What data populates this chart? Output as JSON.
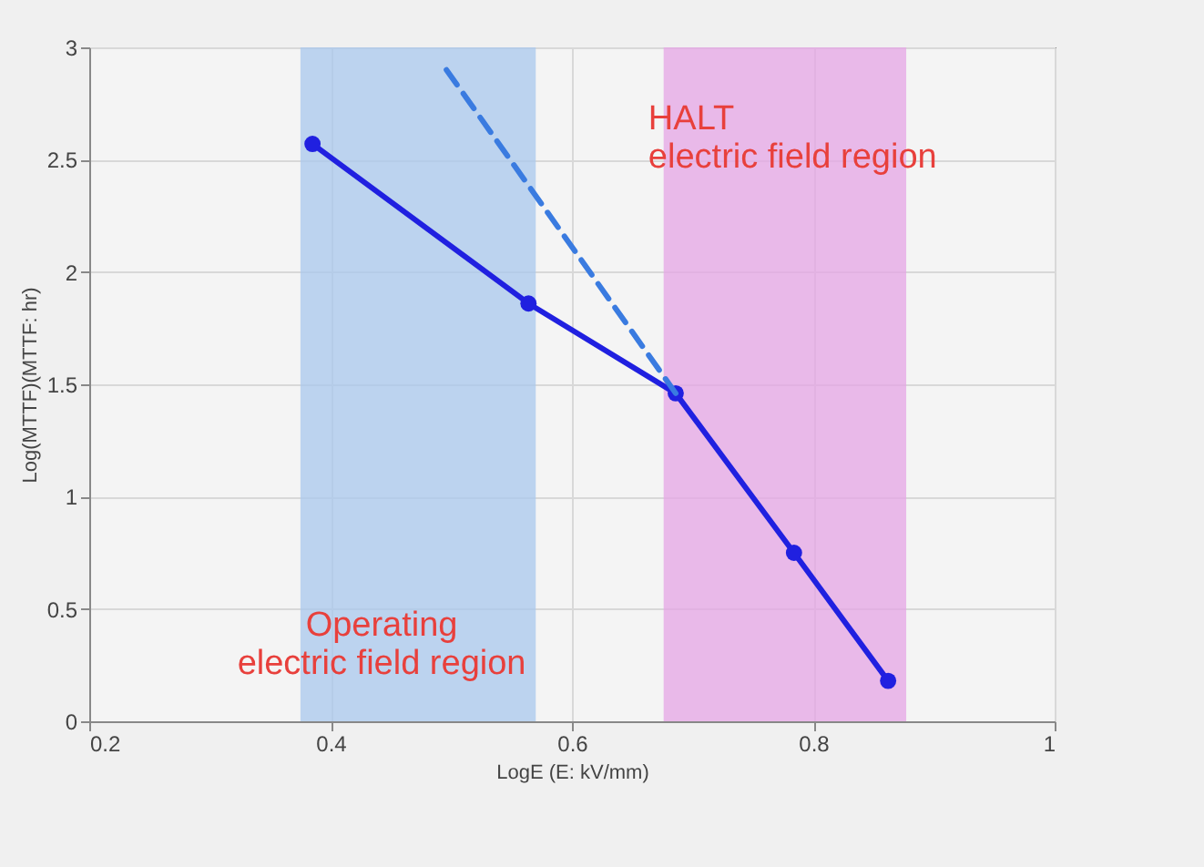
{
  "chart_data": {
    "type": "line",
    "xlabel": "LogE (E: kV/mm)",
    "ylabel": "Log(MTTF)(MTTF: hr)",
    "xlim": [
      0.2,
      1
    ],
    "xticks": [
      0.2,
      0.4,
      0.6,
      0.8,
      1
    ],
    "ylim": [
      0,
      3
    ],
    "yticks": [
      0,
      0.5,
      1,
      1.5,
      2,
      2.5,
      3
    ],
    "grid": true,
    "marker": "circle",
    "series": [
      {
        "color": "#2020e0",
        "x": [
          0.385,
          0.564,
          0.686,
          0.784,
          0.862
        ],
        "values": [
          2.57,
          1.86,
          1.46,
          0.75,
          0.18
        ],
        "line_style": "solid"
      },
      {
        "color": "#3a7be0",
        "x": [
          0.496,
          0.686
        ],
        "values": [
          2.9,
          1.46
        ],
        "line_style": "dashed",
        "marker": "none"
      }
    ],
    "bands": [
      {
        "axis": "x",
        "from": 0.375,
        "to": 0.57,
        "color": "#a9c8ee",
        "label": "Operating\nelectric field region"
      },
      {
        "axis": "x",
        "from": 0.676,
        "to": 0.877,
        "color": "#e6a6e6",
        "label": "HALT\nelectric field region"
      }
    ]
  }
}
